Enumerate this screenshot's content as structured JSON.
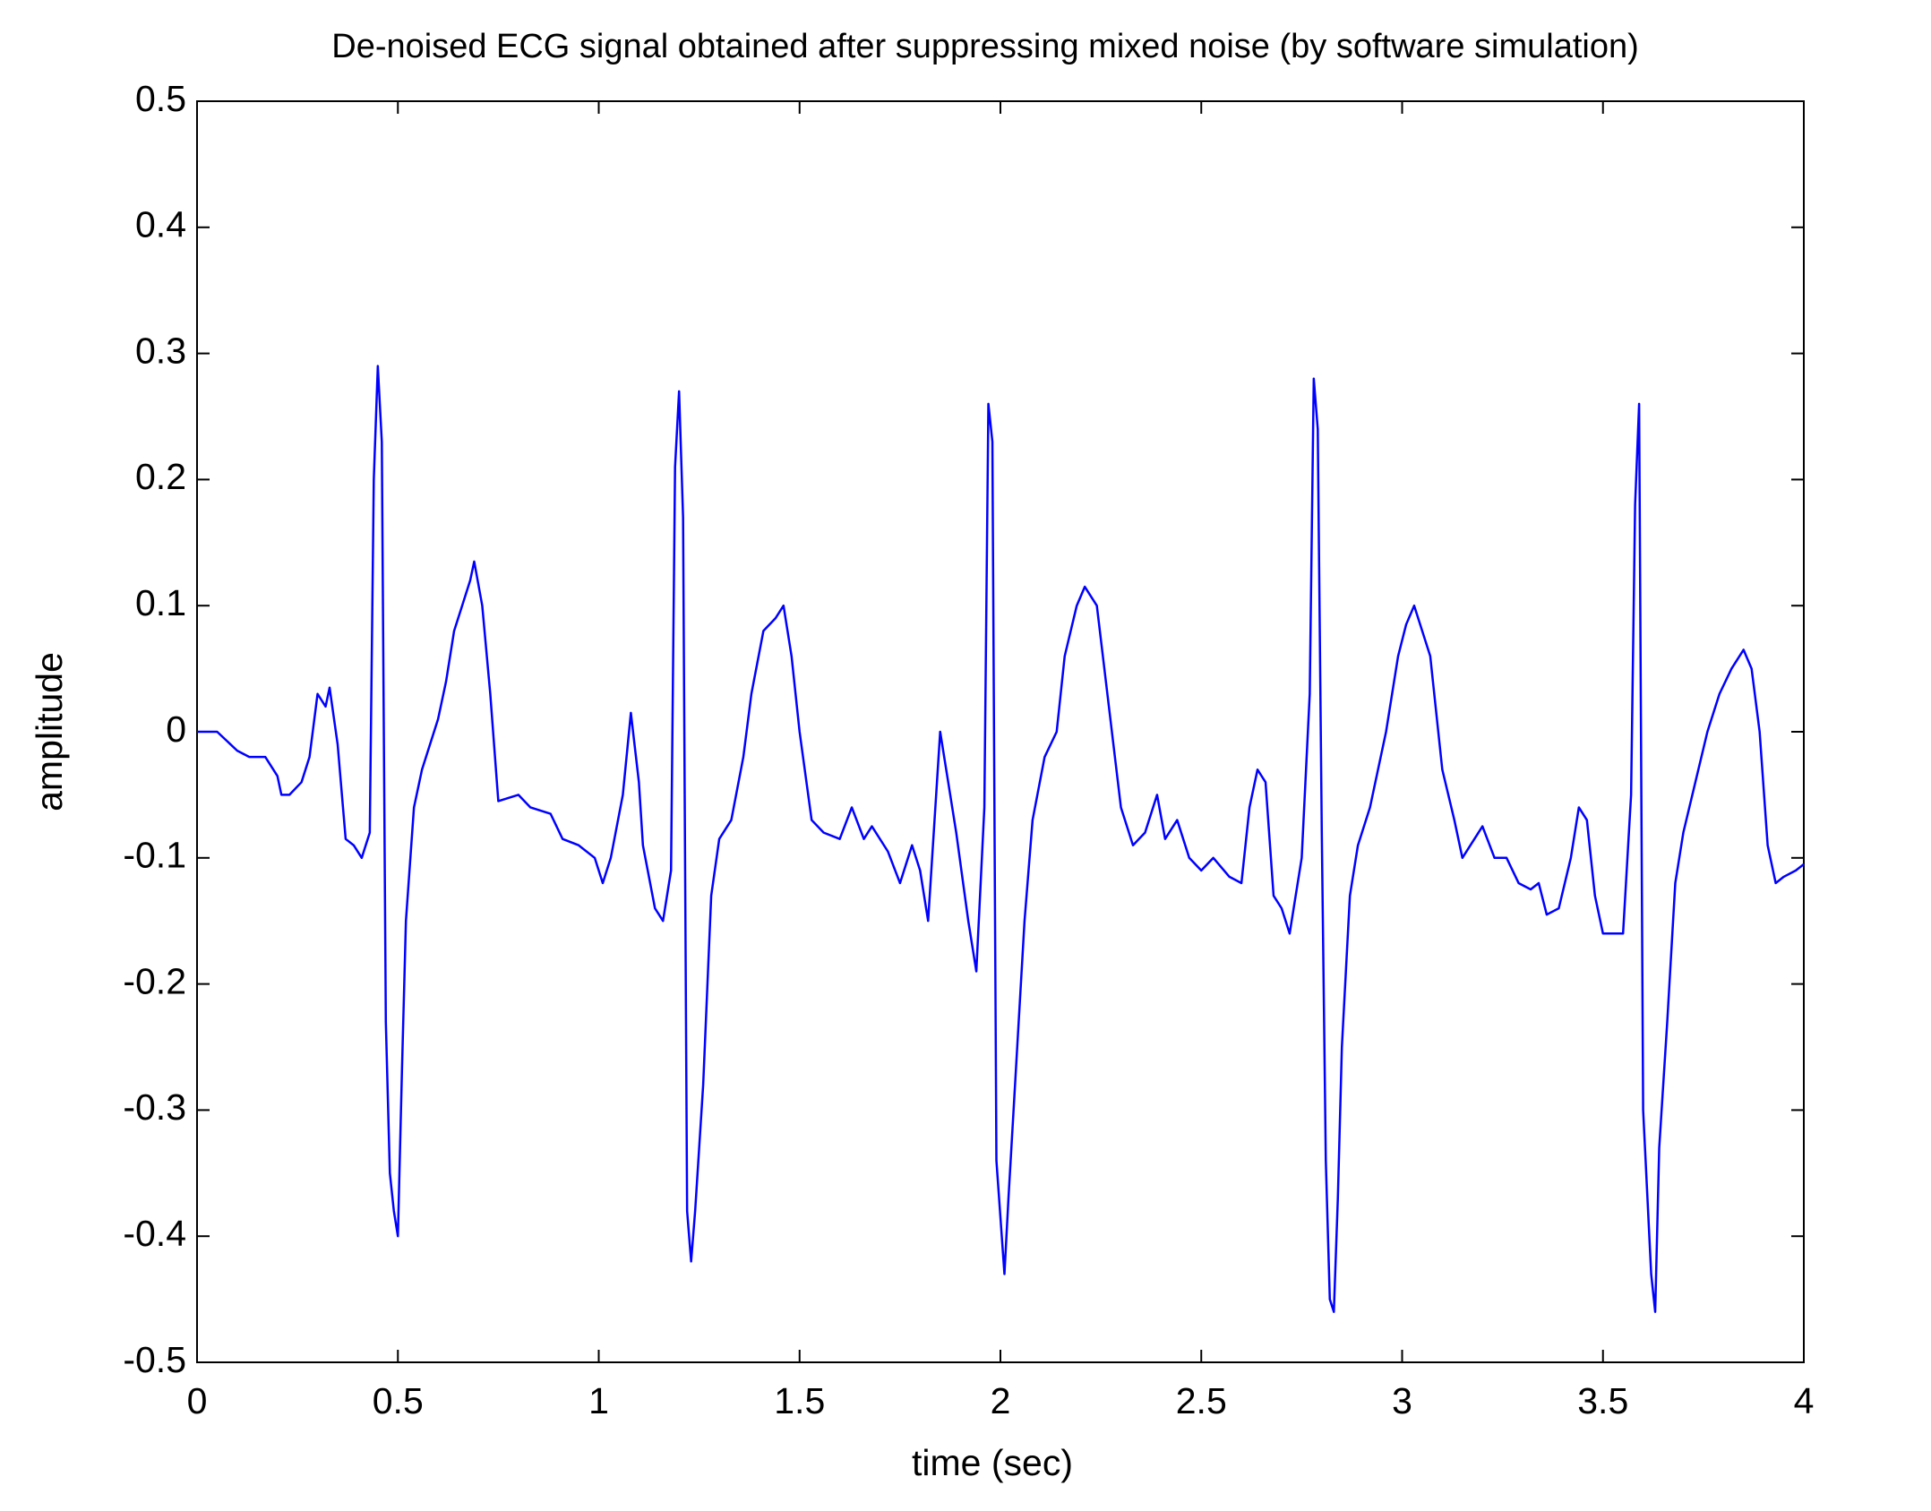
{
  "chart_data": {
    "type": "line",
    "title": "De-noised ECG signal obtained after suppressing mixed noise (by software simulation)",
    "xlabel": "time (sec)",
    "ylabel": "amplitude",
    "color": "#0000ff",
    "grid": false,
    "xlim": [
      0,
      4
    ],
    "ylim": [
      -0.5,
      0.5
    ],
    "xticks": [
      0,
      0.5,
      1,
      1.5,
      2,
      2.5,
      3,
      3.5,
      4
    ],
    "yticks": [
      -0.5,
      -0.4,
      -0.3,
      -0.2,
      -0.1,
      0,
      0.1,
      0.2,
      0.3,
      0.4,
      0.5
    ],
    "x": [
      0,
      0.05,
      0.1,
      0.13,
      0.17,
      0.2,
      0.21,
      0.23,
      0.26,
      0.28,
      0.3,
      0.32,
      0.33,
      0.35,
      0.37,
      0.39,
      0.41,
      0.43,
      0.44,
      0.45,
      0.46,
      0.47,
      0.48,
      0.49,
      0.5,
      0.51,
      0.52,
      0.54,
      0.56,
      0.6,
      0.62,
      0.64,
      0.66,
      0.68,
      0.69,
      0.71,
      0.73,
      0.75,
      0.8,
      0.83,
      0.88,
      0.91,
      0.95,
      0.99,
      1.01,
      1.03,
      1.06,
      1.08,
      1.1,
      1.11,
      1.14,
      1.16,
      1.18,
      1.19,
      1.2,
      1.21,
      1.22,
      1.23,
      1.24,
      1.26,
      1.28,
      1.3,
      1.33,
      1.36,
      1.38,
      1.41,
      1.44,
      1.46,
      1.48,
      1.5,
      1.53,
      1.56,
      1.6,
      1.63,
      1.66,
      1.68,
      1.72,
      1.75,
      1.78,
      1.8,
      1.82,
      1.85,
      1.87,
      1.89,
      1.92,
      1.94,
      1.96,
      1.97,
      1.98,
      1.99,
      2.01,
      2.02,
      2.04,
      2.06,
      2.08,
      2.11,
      2.14,
      2.16,
      2.19,
      2.21,
      2.24,
      2.27,
      2.3,
      2.33,
      2.36,
      2.39,
      2.41,
      2.44,
      2.47,
      2.5,
      2.53,
      2.57,
      2.6,
      2.62,
      2.64,
      2.66,
      2.68,
      2.7,
      2.72,
      2.75,
      2.77,
      2.78,
      2.79,
      2.8,
      2.81,
      2.82,
      2.83,
      2.84,
      2.85,
      2.87,
      2.89,
      2.92,
      2.96,
      2.99,
      3.01,
      3.03,
      3.05,
      3.07,
      3.1,
      3.13,
      3.15,
      3.18,
      3.2,
      3.23,
      3.26,
      3.29,
      3.32,
      3.34,
      3.36,
      3.39,
      3.42,
      3.44,
      3.46,
      3.48,
      3.5,
      3.53,
      3.55,
      3.57,
      3.58,
      3.59,
      3.6,
      3.62,
      3.63,
      3.64,
      3.66,
      3.68,
      3.7,
      3.73,
      3.76,
      3.79,
      3.82,
      3.85,
      3.87,
      3.89,
      3.91,
      3.93,
      3.95,
      3.98,
      4
    ],
    "values": [
      0,
      0,
      -0.015,
      -0.02,
      -0.02,
      -0.035,
      -0.05,
      -0.05,
      -0.04,
      -0.02,
      0.03,
      0.02,
      0.035,
      -0.01,
      -0.085,
      -0.09,
      -0.1,
      -0.08,
      0.2,
      0.29,
      0.23,
      -0.23,
      -0.35,
      -0.38,
      -0.4,
      -0.27,
      -0.15,
      -0.06,
      -0.03,
      0.01,
      0.04,
      0.08,
      0.1,
      0.12,
      0.135,
      0.1,
      0.03,
      -0.055,
      -0.05,
      -0.06,
      -0.065,
      -0.085,
      -0.09,
      -0.1,
      -0.12,
      -0.1,
      -0.05,
      0.015,
      -0.04,
      -0.09,
      -0.14,
      -0.15,
      -0.11,
      0.21,
      0.27,
      0.17,
      -0.38,
      -0.42,
      -0.38,
      -0.28,
      -0.13,
      -0.085,
      -0.07,
      -0.02,
      0.03,
      0.08,
      0.09,
      0.1,
      0.06,
      0,
      -0.07,
      -0.08,
      -0.085,
      -0.06,
      -0.085,
      -0.075,
      -0.095,
      -0.12,
      -0.09,
      -0.11,
      -0.15,
      0,
      -0.04,
      -0.08,
      -0.15,
      -0.19,
      -0.06,
      0.26,
      0.23,
      -0.34,
      -0.43,
      -0.37,
      -0.26,
      -0.15,
      -0.07,
      -0.02,
      0,
      0.06,
      0.1,
      0.115,
      0.1,
      0.02,
      -0.06,
      -0.09,
      -0.08,
      -0.05,
      -0.085,
      -0.07,
      -0.1,
      -0.11,
      -0.1,
      -0.115,
      -0.12,
      -0.06,
      -0.03,
      -0.04,
      -0.13,
      -0.14,
      -0.16,
      -0.1,
      0.03,
      0.28,
      0.24,
      -0.08,
      -0.34,
      -0.45,
      -0.46,
      -0.37,
      -0.25,
      -0.13,
      -0.09,
      -0.06,
      0,
      0.06,
      0.085,
      0.1,
      0.08,
      0.06,
      -0.03,
      -0.07,
      -0.1,
      -0.085,
      -0.075,
      -0.1,
      -0.1,
      -0.12,
      -0.125,
      -0.12,
      -0.145,
      -0.14,
      -0.1,
      -0.06,
      -0.07,
      -0.13,
      -0.16,
      -0.16,
      -0.16,
      -0.05,
      0.18,
      0.26,
      -0.3,
      -0.43,
      -0.46,
      -0.33,
      -0.23,
      -0.12,
      -0.08,
      -0.04,
      0,
      0.03,
      0.05,
      0.065,
      0.05,
      0,
      -0.09,
      -0.12,
      -0.115,
      -0.11,
      -0.105
    ]
  }
}
